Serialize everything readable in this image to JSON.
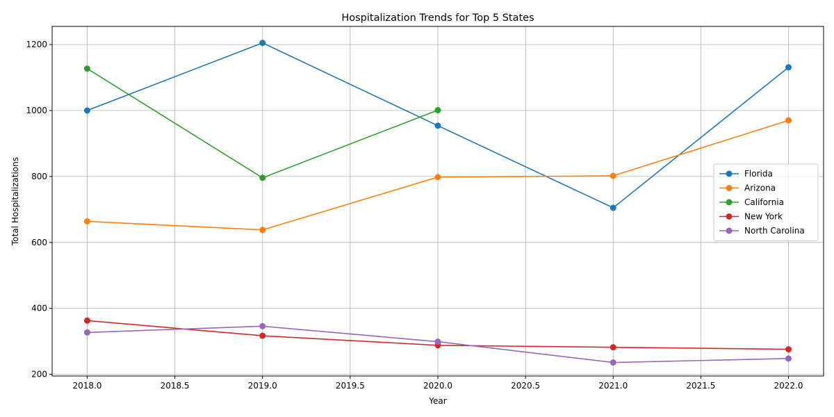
{
  "chart_data": {
    "type": "line",
    "title": "Hospitalization Trends for Top 5 States",
    "xlabel": "Year",
    "ylabel": "Total Hospitalizations",
    "xlim": [
      2017.8,
      2022.2
    ],
    "ylim": [
      195,
      1255
    ],
    "xticks": [
      2018.0,
      2018.5,
      2019.0,
      2019.5,
      2020.0,
      2020.5,
      2021.0,
      2021.5,
      2022.0
    ],
    "xtick_labels": [
      "2018.0",
      "2018.5",
      "2019.0",
      "2019.5",
      "2020.0",
      "2020.5",
      "2021.0",
      "2021.5",
      "2022.0"
    ],
    "yticks": [
      200,
      400,
      600,
      800,
      1000,
      1200
    ],
    "ytick_labels": [
      "200",
      "400",
      "600",
      "800",
      "1000",
      "1200"
    ],
    "grid": true,
    "legend_position": "center-right",
    "series": [
      {
        "name": "Florida",
        "color": "#1f77b4",
        "x": [
          2018,
          2019,
          2020,
          2021,
          2022
        ],
        "y": [
          1000,
          1205,
          954,
          705,
          1131
        ]
      },
      {
        "name": "Arizona",
        "color": "#ff7f0e",
        "x": [
          2018,
          2019,
          2020,
          2021,
          2022
        ],
        "y": [
          664,
          638,
          798,
          802,
          970
        ]
      },
      {
        "name": "California",
        "color": "#2ca02c",
        "x": [
          2018,
          2019,
          2020
        ],
        "y": [
          1127,
          796,
          1001
        ]
      },
      {
        "name": "New York",
        "color": "#d62728",
        "x": [
          2018,
          2019,
          2020,
          2021,
          2022
        ],
        "y": [
          363,
          317,
          288,
          282,
          276
        ]
      },
      {
        "name": "North Carolina",
        "color": "#9467bd",
        "x": [
          2018,
          2019,
          2020,
          2021,
          2022
        ],
        "y": [
          327,
          346,
          299,
          236,
          248
        ]
      }
    ]
  }
}
